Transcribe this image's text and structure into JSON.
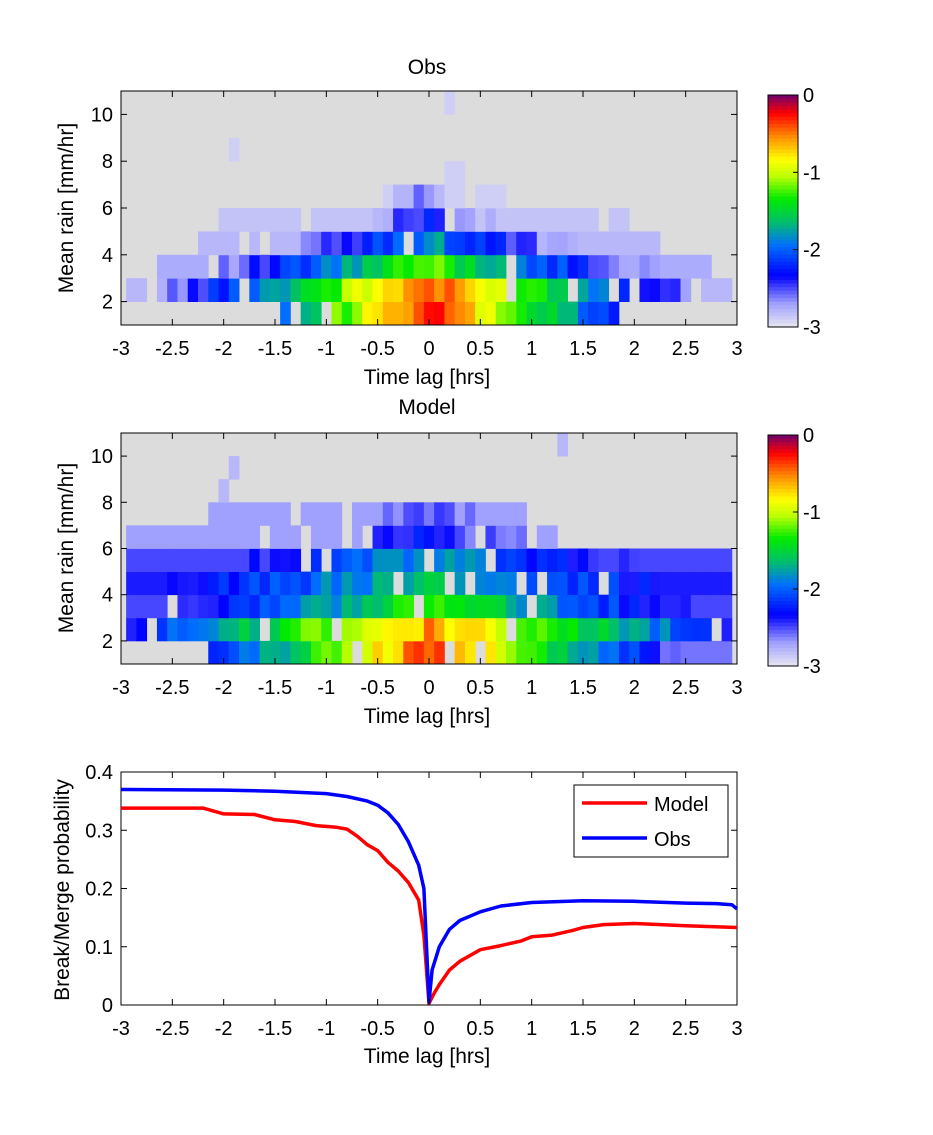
{
  "chart_data": [
    {
      "type": "heatmap",
      "title": "Obs",
      "xlabel": "Time lag [hrs]",
      "ylabel": "Mean rain [mm/hr]",
      "xlim": [
        -3,
        3
      ],
      "ylim": [
        1,
        11
      ],
      "x_ticks": [
        "-3",
        "-2.5",
        "-2",
        "-1.5",
        "-1",
        "-0.5",
        "0",
        "0.5",
        "1",
        "1.5",
        "2",
        "2.5",
        "3"
      ],
      "y_ticks": [
        "2",
        "4",
        "6",
        "8",
        "10"
      ],
      "cell_size": {
        "time_lag_hrs": 0.1,
        "mean_rain_mm_hr": 1
      },
      "colorbar": {
        "min": -3,
        "max": 0,
        "ticks": [
          "0",
          "-1",
          "-2",
          "-3"
        ]
      },
      "rows": [
        {
          "y": 1.5,
          "x_from": -1.5,
          "x_to": 1.8,
          "peak": -0.3,
          "decay": 1.1,
          "floor": -2.85
        },
        {
          "y": 2.5,
          "x_from": -2.9,
          "x_to": 2.9,
          "peak": -0.4,
          "decay": 0.9,
          "floor": -2.8
        },
        {
          "y": 3.5,
          "x_from": -2.7,
          "x_to": 2.7,
          "peak": -1.2,
          "decay": 0.75,
          "floor": -2.75
        },
        {
          "y": 4.5,
          "x_from": -2.2,
          "x_to": 2.2,
          "peak": -1.8,
          "decay": 0.8,
          "floor": -2.8
        },
        {
          "y": 5.5,
          "x_from": -2.0,
          "x_to": 1.9,
          "peak": -2.3,
          "decay": 1.0,
          "floor": -2.85
        },
        {
          "y": 6.5,
          "x_from": -0.4,
          "x_to": 0.7,
          "peak": -2.6,
          "decay": 1.0,
          "floor": -2.9
        },
        {
          "y": 7.5,
          "x_from": 0.2,
          "x_to": 0.3,
          "peak": -2.8,
          "decay": 1.0,
          "floor": -2.9
        },
        {
          "y": 8.5,
          "x_from": -1.9,
          "x_to": -1.9,
          "peak": -2.8,
          "decay": 1.0,
          "floor": -2.9
        },
        {
          "y": 10.5,
          "x_from": 0.2,
          "x_to": 0.2,
          "peak": -2.9,
          "decay": 1.0,
          "floor": -2.9
        }
      ]
    },
    {
      "type": "heatmap",
      "title": "Model",
      "xlabel": "Time lag [hrs]",
      "ylabel": "Mean rain [mm/hr]",
      "xlim": [
        -3,
        3
      ],
      "ylim": [
        1,
        11
      ],
      "x_ticks": [
        "-3",
        "-2.5",
        "-2",
        "-1.5",
        "-1",
        "-0.5",
        "0",
        "0.5",
        "1",
        "1.5",
        "2",
        "2.5",
        "3"
      ],
      "y_ticks": [
        "2",
        "4",
        "6",
        "8",
        "10"
      ],
      "cell_size": {
        "time_lag_hrs": 0.1,
        "mean_rain_mm_hr": 1
      },
      "colorbar": {
        "min": -3,
        "max": 0,
        "ticks": [
          "0",
          "-1",
          "-2",
          "-3"
        ]
      },
      "rows": [
        {
          "y": 1.5,
          "x_from": -2.1,
          "x_to": 2.9,
          "peak": -0.4,
          "decay": 0.9,
          "floor": -2.6
        },
        {
          "y": 2.5,
          "x_from": -2.9,
          "x_to": 2.9,
          "peak": -0.6,
          "decay": 0.6,
          "floor": -2.55
        },
        {
          "y": 3.5,
          "x_from": -2.9,
          "x_to": 2.9,
          "peak": -1.3,
          "decay": 0.5,
          "floor": -2.5
        },
        {
          "y": 4.5,
          "x_from": -2.9,
          "x_to": 2.9,
          "peak": -1.6,
          "decay": 0.35,
          "floor": -2.4
        },
        {
          "y": 5.5,
          "x_from": -2.9,
          "x_to": 2.9,
          "peak": -1.8,
          "decay": 0.4,
          "floor": -2.5
        },
        {
          "y": 6.5,
          "x_from": -2.9,
          "x_to": 1.2,
          "peak": -2.3,
          "decay": 0.5,
          "floor": -2.7
        },
        {
          "y": 7.5,
          "x_from": -2.1,
          "x_to": 0.9,
          "peak": -2.5,
          "decay": 0.6,
          "floor": -2.7
        },
        {
          "y": 8.5,
          "x_from": -2.0,
          "x_to": -2.0,
          "peak": -2.6,
          "decay": 1.0,
          "floor": -2.8
        },
        {
          "y": 9.5,
          "x_from": -1.9,
          "x_to": -1.9,
          "peak": -2.6,
          "decay": 1.0,
          "floor": -2.8
        },
        {
          "y": 10.5,
          "x_from": 1.3,
          "x_to": 1.3,
          "peak": -2.7,
          "decay": 1.0,
          "floor": -2.8
        }
      ]
    },
    {
      "type": "line",
      "title": "",
      "xlabel": "Time lag [hrs]",
      "ylabel": "Break/Merge probability",
      "xlim": [
        -3,
        3
      ],
      "ylim": [
        0,
        0.4
      ],
      "x_ticks": [
        "-3",
        "-2.5",
        "-2",
        "-1.5",
        "-1",
        "-0.5",
        "0",
        "0.5",
        "1",
        "1.5",
        "2",
        "2.5",
        "3"
      ],
      "y_ticks": [
        "0",
        "0.1",
        "0.2",
        "0.3",
        "0.4"
      ],
      "legend": "top-right",
      "series": [
        {
          "name": "Model",
          "color": "#ff0000",
          "points": [
            [
              -3,
              0.338
            ],
            [
              -2.2,
              0.338
            ],
            [
              -2.0,
              0.328
            ],
            [
              -1.7,
              0.327
            ],
            [
              -1.5,
              0.318
            ],
            [
              -1.3,
              0.315
            ],
            [
              -1.1,
              0.308
            ],
            [
              -0.9,
              0.305
            ],
            [
              -0.8,
              0.302
            ],
            [
              -0.7,
              0.29
            ],
            [
              -0.6,
              0.275
            ],
            [
              -0.5,
              0.265
            ],
            [
              -0.4,
              0.245
            ],
            [
              -0.3,
              0.23
            ],
            [
              -0.2,
              0.21
            ],
            [
              -0.1,
              0.18
            ],
            [
              -0.05,
              0.12
            ],
            [
              0,
              0.003
            ],
            [
              0.05,
              0.02
            ],
            [
              0.1,
              0.035
            ],
            [
              0.2,
              0.06
            ],
            [
              0.3,
              0.075
            ],
            [
              0.4,
              0.085
            ],
            [
              0.5,
              0.095
            ],
            [
              0.7,
              0.102
            ],
            [
              0.9,
              0.11
            ],
            [
              1.0,
              0.117
            ],
            [
              1.2,
              0.12
            ],
            [
              1.4,
              0.128
            ],
            [
              1.5,
              0.133
            ],
            [
              1.7,
              0.138
            ],
            [
              2.0,
              0.14
            ],
            [
              2.5,
              0.136
            ],
            [
              3,
              0.133
            ]
          ]
        },
        {
          "name": "Obs",
          "color": "#0000ff",
          "points": [
            [
              -3,
              0.37
            ],
            [
              -2.0,
              0.369
            ],
            [
              -1.5,
              0.367
            ],
            [
              -1.0,
              0.363
            ],
            [
              -0.8,
              0.358
            ],
            [
              -0.6,
              0.35
            ],
            [
              -0.5,
              0.343
            ],
            [
              -0.4,
              0.33
            ],
            [
              -0.3,
              0.31
            ],
            [
              -0.2,
              0.28
            ],
            [
              -0.1,
              0.24
            ],
            [
              -0.05,
              0.2
            ],
            [
              0,
              0.005
            ],
            [
              0.03,
              0.06
            ],
            [
              0.1,
              0.1
            ],
            [
              0.2,
              0.13
            ],
            [
              0.3,
              0.145
            ],
            [
              0.5,
              0.16
            ],
            [
              0.7,
              0.17
            ],
            [
              1.0,
              0.176
            ],
            [
              1.5,
              0.179
            ],
            [
              2.0,
              0.178
            ],
            [
              2.5,
              0.175
            ],
            [
              2.8,
              0.174
            ],
            [
              2.95,
              0.172
            ],
            [
              3,
              0.165
            ]
          ]
        }
      ]
    }
  ]
}
